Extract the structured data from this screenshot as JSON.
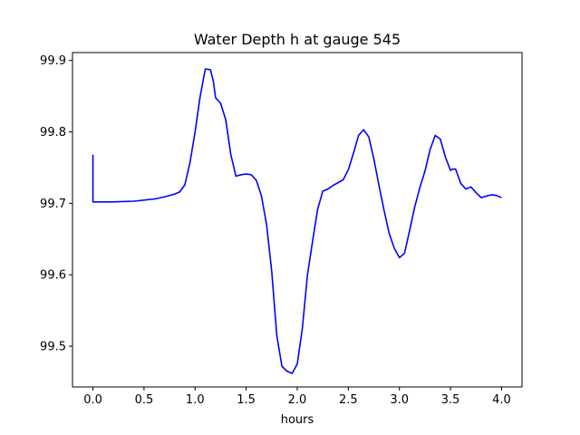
{
  "chart_data": {
    "type": "line",
    "title": "Water Depth h at gauge 545",
    "xlabel": "hours",
    "ylabel": "",
    "xlim": [
      -0.2,
      4.2
    ],
    "ylim": [
      99.443,
      99.911
    ],
    "xticks": [
      0,
      0.5,
      1,
      1.5,
      2,
      2.5,
      3,
      3.5,
      4
    ],
    "xtick_labels": [
      "0.0",
      "0.5",
      "1.0",
      "1.5",
      "2.0",
      "2.5",
      "3.0",
      "3.5",
      "4.0"
    ],
    "yticks": [
      99.5,
      99.6,
      99.7,
      99.8,
      99.9
    ],
    "ytick_labels": [
      "99.5",
      "99.6",
      "99.7",
      "99.8",
      "99.9"
    ],
    "grid": false,
    "legend": "none",
    "series": [
      {
        "color": "#0000ff",
        "x": [
          0.0,
          0.0,
          0.2,
          0.4,
          0.6,
          0.7,
          0.8,
          0.85,
          0.9,
          0.95,
          1.0,
          1.05,
          1.1,
          1.15,
          1.18,
          1.2,
          1.25,
          1.3,
          1.35,
          1.4,
          1.45,
          1.5,
          1.55,
          1.6,
          1.65,
          1.7,
          1.75,
          1.8,
          1.85,
          1.9,
          1.95,
          2.0,
          2.05,
          2.1,
          2.15,
          2.2,
          2.25,
          2.3,
          2.35,
          2.4,
          2.45,
          2.5,
          2.55,
          2.6,
          2.65,
          2.7,
          2.75,
          2.8,
          2.85,
          2.9,
          2.95,
          3.0,
          3.05,
          3.1,
          3.15,
          3.2,
          3.25,
          3.3,
          3.35,
          3.4,
          3.45,
          3.5,
          3.52,
          3.55,
          3.6,
          3.65,
          3.7,
          3.75,
          3.8,
          3.85,
          3.9,
          3.95,
          4.0
        ],
        "y": [
          99.768,
          99.702,
          99.702,
          99.703,
          99.706,
          99.709,
          99.713,
          99.716,
          99.726,
          99.757,
          99.8,
          99.85,
          99.888,
          99.887,
          99.87,
          99.848,
          99.84,
          99.817,
          99.768,
          99.738,
          99.74,
          99.741,
          99.74,
          99.732,
          99.71,
          99.67,
          99.605,
          99.515,
          99.472,
          99.465,
          99.462,
          99.475,
          99.525,
          99.6,
          99.647,
          99.692,
          99.717,
          99.72,
          99.725,
          99.729,
          99.733,
          99.747,
          99.77,
          99.795,
          99.803,
          99.793,
          99.762,
          99.725,
          99.69,
          99.658,
          99.637,
          99.624,
          99.63,
          99.662,
          99.695,
          99.722,
          99.745,
          99.775,
          99.795,
          99.79,
          99.765,
          99.746,
          99.748,
          99.748,
          99.728,
          99.72,
          99.723,
          99.715,
          99.708,
          99.71,
          99.712,
          99.711,
          99.708
        ]
      }
    ]
  }
}
